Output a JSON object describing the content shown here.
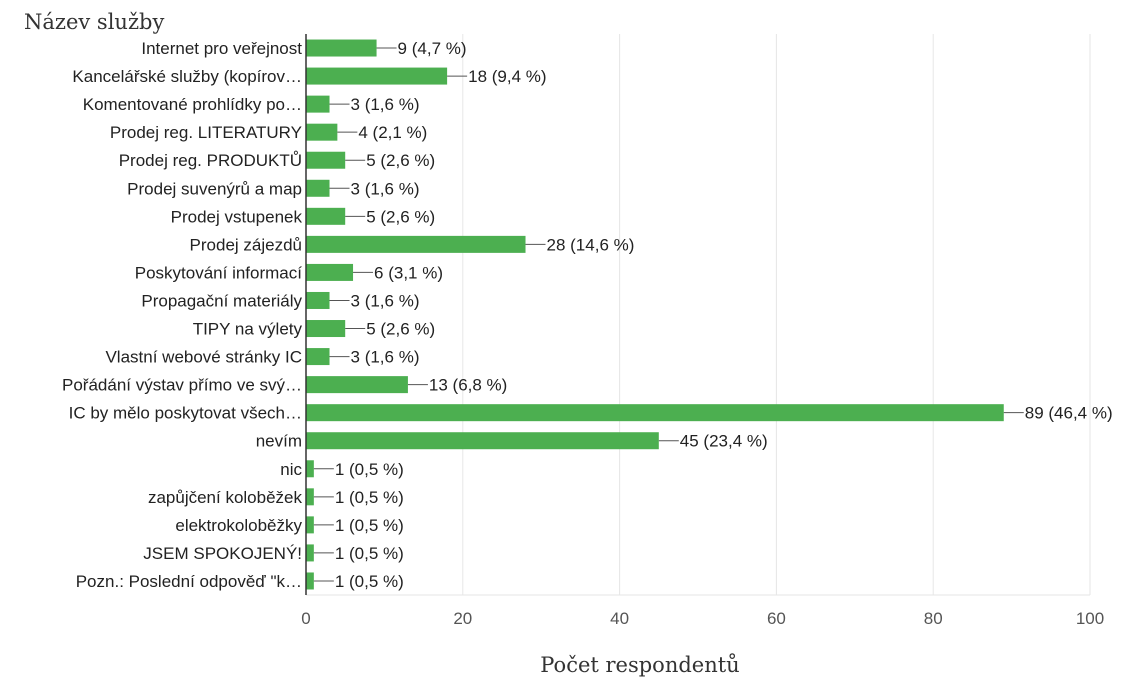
{
  "chart_data": {
    "type": "bar",
    "orientation": "horizontal",
    "title": "Název služby",
    "xlabel": "Počet respondentů",
    "ylabel": "",
    "xlim": [
      0,
      100
    ],
    "x_ticks": [
      0,
      20,
      40,
      60,
      80,
      100
    ],
    "grid": true,
    "bar_color": "#4caf50",
    "categories": [
      "Internet pro veřejnost",
      "Kancelářské služby (kopírov…",
      "Komentované prohlídky po…",
      "Prodej reg. LITERATURY",
      "Prodej reg. PRODUKTŮ",
      "Prodej suvenýrů a map",
      "Prodej vstupenek",
      "Prodej zájezdů",
      "Poskytování informací",
      "Propagační materiály",
      "TIPY na výlety",
      "Vlastní webové stránky IC",
      "Pořádání výstav přímo ve svý…",
      "IC by mělo poskytovat všech…",
      "nevím",
      "nic",
      "zapůjčení koloběžek",
      "elektrokoloběžky",
      "JSEM SPOKOJENÝ!",
      "Pozn.: Poslední odpověď \"k…"
    ],
    "values": [
      9,
      18,
      3,
      4,
      5,
      3,
      5,
      28,
      6,
      3,
      5,
      3,
      13,
      89,
      45,
      1,
      1,
      1,
      1,
      1
    ],
    "data_labels": [
      "9 (4,7 %)",
      "18 (9,4 %)",
      "3 (1,6 %)",
      "4 (2,1 %)",
      "5 (2,6 %)",
      "3 (1,6 %)",
      "5 (2,6 %)",
      "28 (14,6 %)",
      "6 (3,1 %)",
      "3 (1,6 %)",
      "5 (2,6 %)",
      "3 (1,6 %)",
      "13 (6,8 %)",
      "89 (46,4 %)",
      "45 (23,4 %)",
      "1 (0,5 %)",
      "1 (0,5 %)",
      "1 (0,5 %)",
      "1 (0,5 %)",
      "1 (0,5 %)"
    ]
  }
}
